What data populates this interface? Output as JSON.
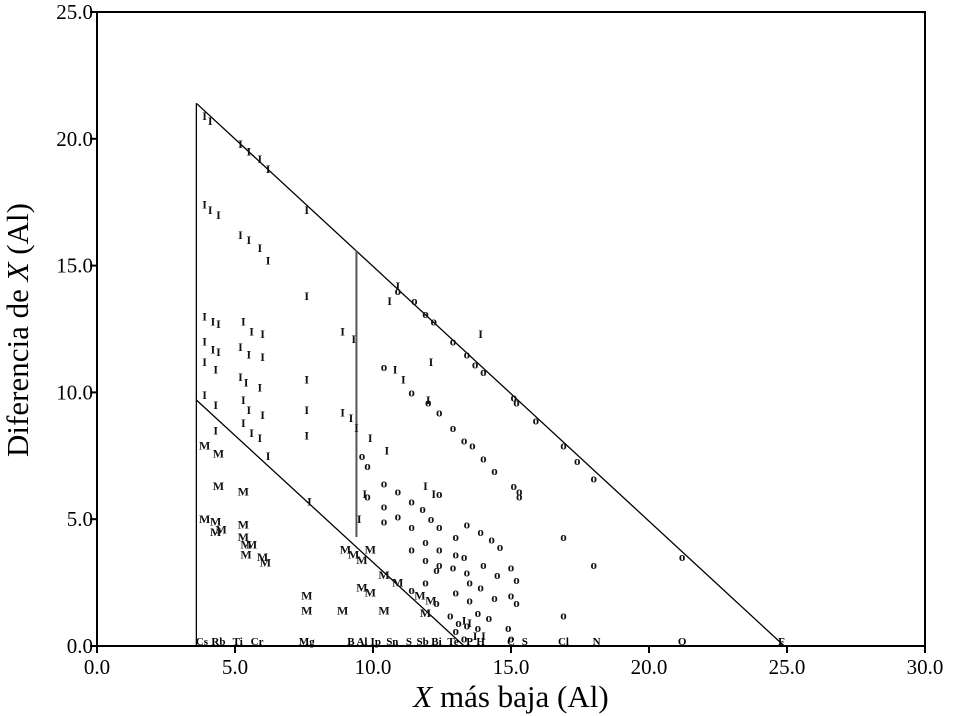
{
  "chart_data": {
    "type": "scatter",
    "title": "",
    "xlabel": {
      "italic": "X",
      "rest": " más baja (Al)"
    },
    "ylabel": {
      "pre": "Diferencia de ",
      "italic": "X",
      "post": " (Al)"
    },
    "xlim": [
      0,
      30
    ],
    "ylim": [
      0,
      25
    ],
    "xticks": [
      "0.0",
      "5.0",
      "10.0",
      "15.0",
      "20.0",
      "25.0",
      "30.0"
    ],
    "yticks": [
      "0.0",
      "5.0",
      "10.0",
      "15.0",
      "20.0",
      "25.0"
    ],
    "grid": false,
    "lines": [
      {
        "x": [
          3.6,
          24.9
        ],
        "y": [
          21.4,
          0
        ]
      },
      {
        "x": [
          3.6,
          13.3
        ],
        "y": [
          9.7,
          0
        ]
      },
      {
        "x": [
          3.6,
          3.6
        ],
        "y": [
          0,
          21.4
        ]
      },
      {
        "x": [
          9.4,
          9.4
        ],
        "y": [
          4.3,
          15.6
        ]
      }
    ],
    "element_labels": [
      {
        "text": "Cs",
        "x": 3.8
      },
      {
        "text": "Rb",
        "x": 4.4
      },
      {
        "text": "Ti",
        "x": 5.1
      },
      {
        "text": "Cr",
        "x": 5.8
      },
      {
        "text": "Mg",
        "x": 7.6
      },
      {
        "text": "B",
        "x": 9.2
      },
      {
        "text": "Al",
        "x": 9.6
      },
      {
        "text": "Ip",
        "x": 10.1
      },
      {
        "text": "Sn",
        "x": 10.7
      },
      {
        "text": "S",
        "x": 11.3
      },
      {
        "text": "Sb",
        "x": 11.8
      },
      {
        "text": "Bi",
        "x": 12.3
      },
      {
        "text": "Te",
        "x": 12.9
      },
      {
        "text": "P",
        "x": 13.5
      },
      {
        "text": "H",
        "x": 13.9
      },
      {
        "text": "C",
        "x": 15.0
      },
      {
        "text": "S",
        "x": 15.5
      },
      {
        "text": "Cl",
        "x": 16.9
      },
      {
        "text": "N",
        "x": 18.1
      },
      {
        "text": "O",
        "x": 21.2
      },
      {
        "text": "F",
        "x": 24.8
      }
    ],
    "series": [
      {
        "marker": "I",
        "points": [
          [
            3.9,
            20.9
          ],
          [
            4.1,
            20.7
          ],
          [
            5.2,
            19.8
          ],
          [
            5.5,
            19.5
          ],
          [
            5.9,
            19.2
          ],
          [
            6.2,
            18.8
          ],
          [
            7.6,
            17.2
          ],
          [
            3.9,
            17.4
          ],
          [
            4.1,
            17.2
          ],
          [
            4.4,
            17.0
          ],
          [
            5.2,
            16.2
          ],
          [
            5.5,
            16.0
          ],
          [
            5.9,
            15.7
          ],
          [
            6.2,
            15.2
          ],
          [
            7.6,
            13.8
          ],
          [
            3.9,
            13.0
          ],
          [
            4.2,
            12.8
          ],
          [
            4.4,
            12.7
          ],
          [
            5.3,
            12.8
          ],
          [
            5.6,
            12.4
          ],
          [
            6.0,
            12.3
          ],
          [
            8.9,
            12.4
          ],
          [
            9.3,
            12.1
          ],
          [
            3.9,
            12.0
          ],
          [
            4.2,
            11.7
          ],
          [
            4.4,
            11.6
          ],
          [
            5.2,
            11.8
          ],
          [
            5.5,
            11.5
          ],
          [
            6.0,
            11.4
          ],
          [
            3.9,
            11.2
          ],
          [
            4.3,
            10.9
          ],
          [
            5.2,
            10.6
          ],
          [
            5.4,
            10.4
          ],
          [
            5.9,
            10.2
          ],
          [
            7.6,
            10.5
          ],
          [
            3.9,
            9.9
          ],
          [
            4.3,
            9.5
          ],
          [
            5.3,
            9.7
          ],
          [
            5.5,
            9.3
          ],
          [
            6.0,
            9.1
          ],
          [
            7.6,
            9.3
          ],
          [
            8.9,
            9.2
          ],
          [
            9.2,
            9.0
          ],
          [
            4.3,
            8.5
          ],
          [
            5.3,
            8.8
          ],
          [
            5.6,
            8.4
          ],
          [
            5.9,
            8.2
          ],
          [
            7.6,
            8.3
          ],
          [
            9.4,
            8.6
          ],
          [
            9.9,
            8.2
          ],
          [
            10.5,
            7.7
          ],
          [
            9.5,
            5.0
          ],
          [
            9.7,
            6.0
          ],
          [
            7.7,
            5.7
          ],
          [
            11.9,
            6.3
          ],
          [
            12.2,
            6.0
          ],
          [
            10.6,
            13.6
          ],
          [
            10.9,
            14.2
          ],
          [
            13.9,
            12.3
          ],
          [
            12.1,
            11.2
          ],
          [
            11.1,
            10.5
          ],
          [
            10.8,
            10.9
          ],
          [
            12.0,
            9.7
          ],
          [
            6.2,
            7.5
          ],
          [
            13.3,
            1.0
          ],
          [
            13.7,
            0.4
          ],
          [
            14.0,
            0.4
          ],
          [
            13.5,
            0.9
          ]
        ]
      },
      {
        "marker": "M",
        "points": [
          [
            3.9,
            7.9
          ],
          [
            4.4,
            7.6
          ],
          [
            4.4,
            6.3
          ],
          [
            5.3,
            6.1
          ],
          [
            3.9,
            5.0
          ],
          [
            4.3,
            4.9
          ],
          [
            4.3,
            4.5
          ],
          [
            4.5,
            4.6
          ],
          [
            5.3,
            4.8
          ],
          [
            5.3,
            4.3
          ],
          [
            5.4,
            4.0
          ],
          [
            5.4,
            3.6
          ],
          [
            5.6,
            4.0
          ],
          [
            6.0,
            3.5
          ],
          [
            6.1,
            3.3
          ],
          [
            9.0,
            3.8
          ],
          [
            9.3,
            3.6
          ],
          [
            9.6,
            3.4
          ],
          [
            9.9,
            3.8
          ],
          [
            9.6,
            2.3
          ],
          [
            9.9,
            2.1
          ],
          [
            10.4,
            2.8
          ],
          [
            10.9,
            2.5
          ],
          [
            7.6,
            2.0
          ],
          [
            7.6,
            1.4
          ],
          [
            8.9,
            1.4
          ],
          [
            10.4,
            1.4
          ],
          [
            11.9,
            1.3
          ],
          [
            11.7,
            2.0
          ],
          [
            12.1,
            1.8
          ]
        ]
      },
      {
        "marker": "O",
        "points": [
          [
            10.9,
            14.0
          ],
          [
            11.5,
            13.6
          ],
          [
            11.9,
            13.1
          ],
          [
            12.2,
            12.8
          ],
          [
            12.9,
            12.0
          ],
          [
            13.4,
            11.5
          ],
          [
            13.7,
            11.1
          ],
          [
            14.0,
            10.8
          ],
          [
            15.2,
            9.6
          ],
          [
            15.1,
            9.8
          ],
          [
            15.9,
            8.9
          ],
          [
            16.9,
            7.9
          ],
          [
            17.4,
            7.3
          ],
          [
            18.0,
            6.6
          ],
          [
            21.2,
            3.5
          ],
          [
            10.4,
            11.0
          ],
          [
            11.4,
            10.0
          ],
          [
            12.0,
            9.6
          ],
          [
            12.4,
            9.2
          ],
          [
            12.9,
            8.6
          ],
          [
            13.3,
            8.1
          ],
          [
            13.6,
            7.9
          ],
          [
            14.0,
            7.4
          ],
          [
            14.4,
            6.9
          ],
          [
            15.1,
            6.3
          ],
          [
            15.3,
            6.1
          ],
          [
            15.3,
            5.9
          ],
          [
            16.9,
            4.3
          ],
          [
            18.0,
            3.2
          ],
          [
            16.9,
            1.2
          ],
          [
            9.6,
            7.5
          ],
          [
            9.8,
            7.1
          ],
          [
            10.4,
            6.4
          ],
          [
            10.9,
            6.1
          ],
          [
            11.4,
            5.7
          ],
          [
            12.4,
            6.0
          ],
          [
            11.8,
            5.4
          ],
          [
            12.1,
            5.0
          ],
          [
            12.4,
            4.7
          ],
          [
            13.0,
            4.3
          ],
          [
            13.4,
            4.8
          ],
          [
            13.9,
            4.5
          ],
          [
            14.3,
            4.2
          ],
          [
            14.6,
            3.9
          ],
          [
            9.8,
            5.9
          ],
          [
            10.4,
            5.5
          ],
          [
            10.9,
            5.1
          ],
          [
            10.4,
            4.9
          ],
          [
            11.4,
            4.7
          ],
          [
            11.9,
            4.1
          ],
          [
            12.4,
            3.8
          ],
          [
            13.0,
            3.6
          ],
          [
            13.3,
            3.5
          ],
          [
            14.0,
            3.2
          ],
          [
            14.5,
            2.8
          ],
          [
            15.2,
            2.6
          ],
          [
            11.4,
            3.8
          ],
          [
            11.9,
            3.4
          ],
          [
            12.3,
            3.0
          ],
          [
            12.4,
            3.2
          ],
          [
            12.9,
            3.1
          ],
          [
            13.4,
            2.9
          ],
          [
            13.5,
            2.5
          ],
          [
            13.9,
            2.3
          ],
          [
            15.0,
            3.1
          ],
          [
            14.4,
            1.9
          ],
          [
            15.0,
            2.0
          ],
          [
            15.2,
            1.7
          ],
          [
            11.4,
            2.2
          ],
          [
            11.9,
            2.5
          ],
          [
            12.3,
            1.7
          ],
          [
            13.0,
            2.1
          ],
          [
            13.5,
            1.8
          ],
          [
            13.8,
            1.3
          ],
          [
            12.8,
            1.2
          ],
          [
            13.1,
            0.9
          ],
          [
            13.4,
            0.8
          ],
          [
            13.8,
            0.7
          ],
          [
            14.2,
            1.1
          ],
          [
            14.9,
            0.7
          ],
          [
            15.0,
            0.3
          ],
          [
            13.0,
            0.6
          ],
          [
            13.3,
            0.3
          ]
        ]
      }
    ]
  }
}
